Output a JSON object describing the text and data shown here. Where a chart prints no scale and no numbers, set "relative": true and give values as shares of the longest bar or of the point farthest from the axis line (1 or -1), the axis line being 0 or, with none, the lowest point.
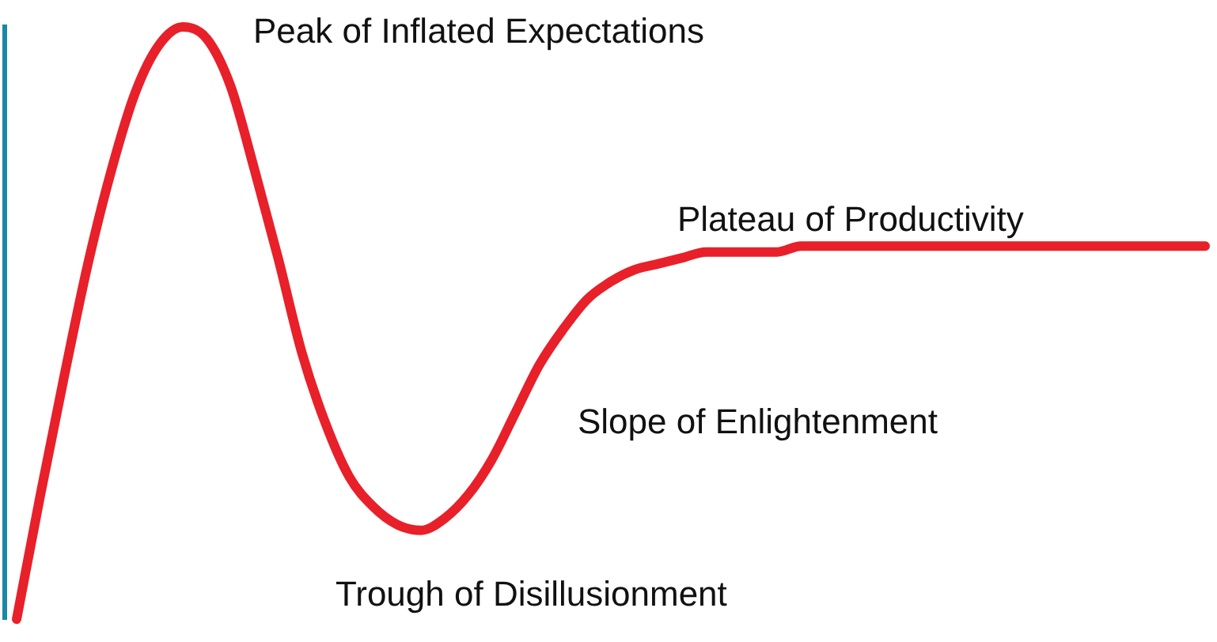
{
  "chart_data": {
    "type": "line",
    "relative": true,
    "categories": [
      null,
      null,
      null,
      null,
      null,
      null,
      null,
      null,
      null,
      null,
      null,
      null,
      null,
      null,
      null,
      null,
      null,
      null,
      null,
      null,
      null,
      null,
      null,
      null,
      null,
      null,
      null,
      null,
      null,
      null,
      null,
      null,
      null,
      null,
      null,
      null,
      null,
      null,
      null,
      null,
      null,
      null,
      null,
      null,
      null,
      null,
      null,
      null,
      null,
      null,
      null
    ],
    "series": [
      {
        "color": "#e8202a",
        "values": [
          0,
          0.21,
          0.41,
          0.6,
          0.76,
          0.89,
          0.97,
          1,
          0.98,
          0.9,
          0.76,
          0.61,
          0.45,
          0.33,
          0.24,
          0.19,
          0.16,
          0.15,
          0.17,
          0.21,
          0.27,
          0.35,
          0.43,
          0.49,
          0.54,
          0.57,
          0.59,
          0.6,
          0.61,
          0.62,
          0.62,
          0.62,
          0.62,
          0.63,
          0.63,
          0.63,
          0.63,
          0.63,
          0.63,
          0.63,
          0.63,
          0.63,
          0.63,
          0.63,
          0.63,
          0.63,
          0.63,
          0.63,
          0.63,
          0.63,
          0.63
        ]
      }
    ],
    "annotations": [
      "Peak of Inflated Expectations",
      "Plateau of Productivity",
      "Slope of Enlightenment",
      "Trough of Disillusionment"
    ],
    "legend": false,
    "grid": false,
    "marker": "none",
    "line_style": "solid"
  }
}
